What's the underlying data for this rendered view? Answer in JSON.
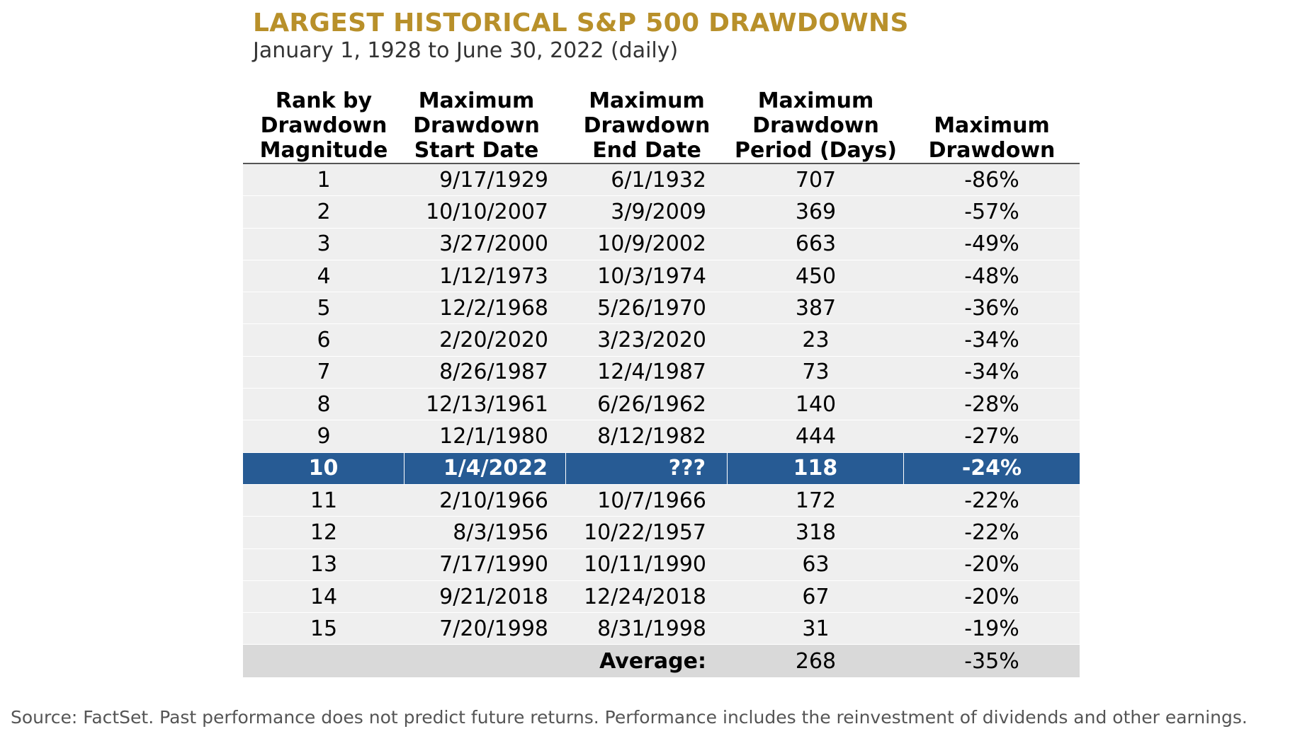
{
  "chart_data": {
    "type": "table",
    "title": "LARGEST HISTORICAL S&P 500 DRAWDOWNS",
    "subtitle": "January 1, 1928 to June 30, 2022 (daily)",
    "columns": [
      "Rank by\nDrawdown\nMagnitude",
      "Maximum\nDrawdown\nStart Date",
      "Maximum\nDrawdown\nEnd Date",
      "Maximum\nDrawdown\nPeriod (Days)",
      "Maximum\nDrawdown"
    ],
    "rows": [
      [
        "1",
        "9/17/1929",
        "6/1/1932",
        "707",
        "-86%"
      ],
      [
        "2",
        "10/10/2007",
        "3/9/2009",
        "369",
        "-57%"
      ],
      [
        "3",
        "3/27/2000",
        "10/9/2002",
        "663",
        "-49%"
      ],
      [
        "4",
        "1/12/1973",
        "10/3/1974",
        "450",
        "-48%"
      ],
      [
        "5",
        "12/2/1968",
        "5/26/1970",
        "387",
        "-36%"
      ],
      [
        "6",
        "2/20/2020",
        "3/23/2020",
        "23",
        "-34%"
      ],
      [
        "7",
        "8/26/1987",
        "12/4/1987",
        "73",
        "-34%"
      ],
      [
        "8",
        "12/13/1961",
        "6/26/1962",
        "140",
        "-28%"
      ],
      [
        "9",
        "12/1/1980",
        "8/12/1982",
        "444",
        "-27%"
      ],
      [
        "10",
        "1/4/2022",
        "???",
        "118",
        "-24%"
      ],
      [
        "11",
        "2/10/1966",
        "10/7/1966",
        "172",
        "-22%"
      ],
      [
        "12",
        "8/3/1956",
        "10/22/1957",
        "318",
        "-22%"
      ],
      [
        "13",
        "7/17/1990",
        "10/11/1990",
        "63",
        "-20%"
      ],
      [
        "14",
        "9/21/2018",
        "12/24/2018",
        "67",
        "-20%"
      ],
      [
        "15",
        "7/20/1998",
        "8/31/1998",
        "31",
        "-19%"
      ]
    ],
    "highlight_rank": "10",
    "average": {
      "label": "Average:",
      "period_days": "268",
      "drawdown": "-35%"
    },
    "colors": {
      "title": "#B8902A",
      "highlight_row": "#275B94",
      "row_background": "#EFEFEF",
      "average_row": "#D9D9D9"
    }
  },
  "footer": {
    "source": "Source: FactSet. Past performance does not predict future returns. Performance includes the reinvestment of dividends and other earnings."
  }
}
